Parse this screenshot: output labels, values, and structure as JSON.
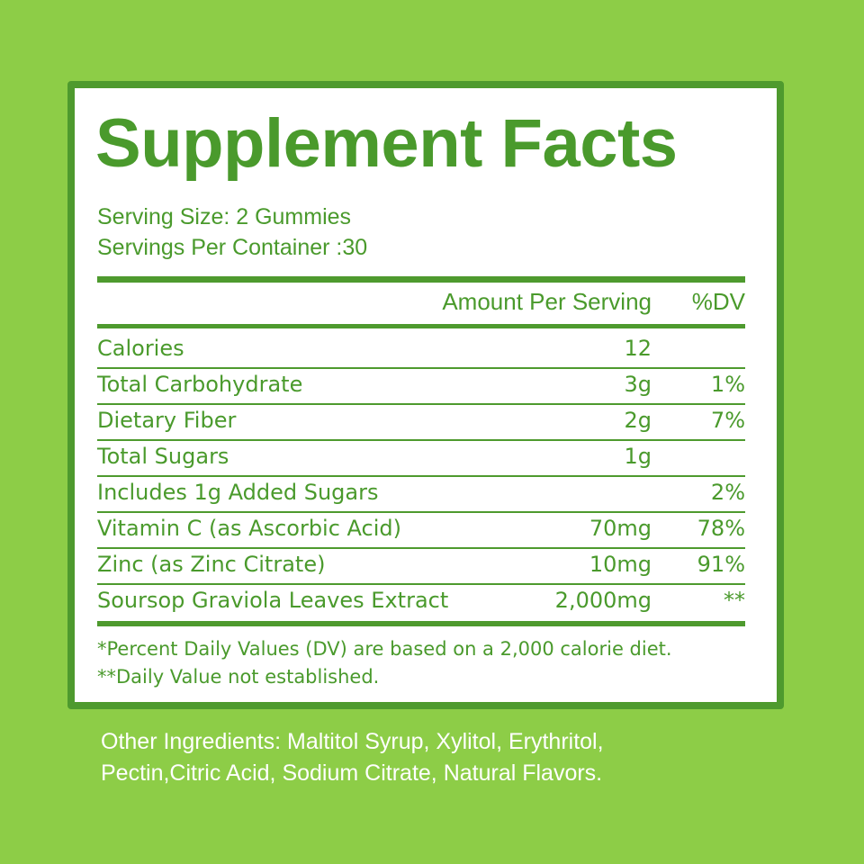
{
  "header": {
    "title": "Supplement Facts",
    "serving_size": "Serving Size: 2 Gummies",
    "servings_per_container": "Servings Per Container :30"
  },
  "table": {
    "columns": [
      "Amount Per Serving",
      "%DV"
    ],
    "rows": [
      {
        "name": "Calories",
        "amount": 12
      },
      {
        "name": "Total Carbohydrate",
        "amount": "3g",
        "dv": "1%"
      },
      {
        "name": "Dietary Fiber",
        "amount": "2g",
        "dv": "7%"
      },
      {
        "name": "Total Sugars",
        "amount": "1g"
      },
      {
        "name": "Includes 1g Added Sugars",
        "dv": "2%"
      },
      {
        "name": "Vitamin C (as Ascorbic Acid)",
        "amount": "70mg",
        "dv": "78%"
      },
      {
        "name": "Zinc (as Zinc Citrate)",
        "amount": "10mg",
        "dv": "91%"
      },
      {
        "name": "Soursop Graviola Leaves Extract",
        "amount": "2,000mg",
        "dv": "**"
      }
    ]
  },
  "footnotes": [
    "*Percent Daily Values (DV) are based on a 2,000 calorie diet.",
    "**Daily Value not established."
  ],
  "other_ingredients": [
    "Other Ingredients: Maltitol Syrup, Xylitol, Erythritol,",
    "Pectin,Citric Acid, Sodium Citrate, Natural Flavors."
  ]
}
